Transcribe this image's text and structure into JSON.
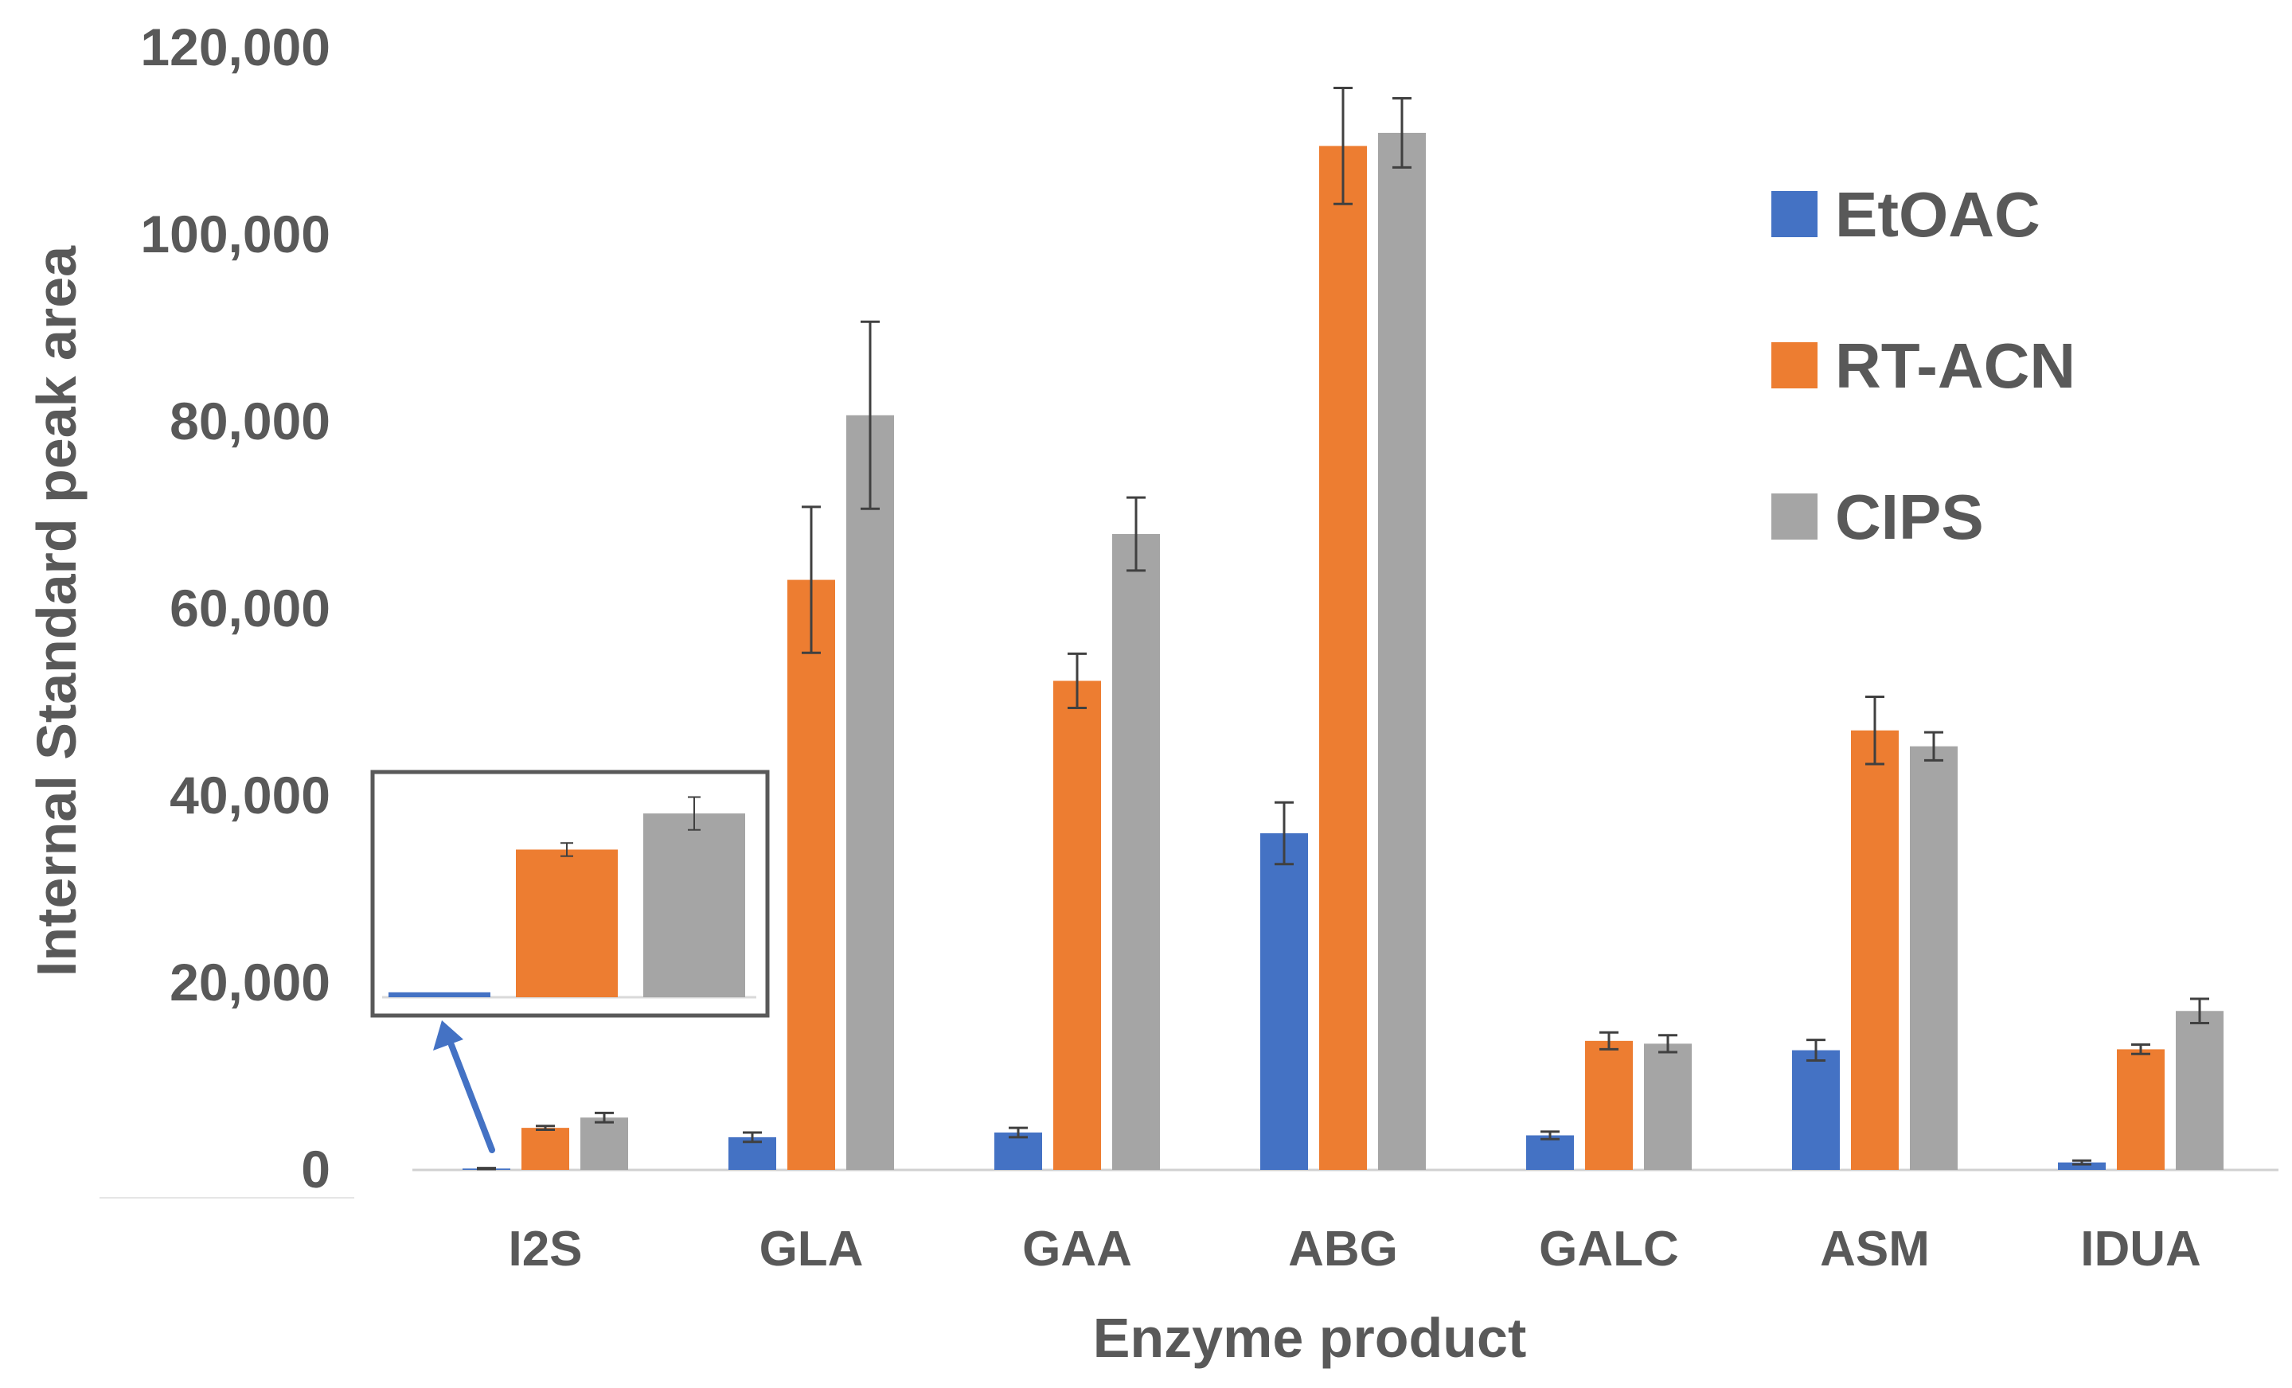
{
  "chart_data": {
    "type": "bar",
    "title": "",
    "xlabel": "Enzyme product",
    "ylabel": "Internal Standard peak area",
    "ylim": [
      0,
      120000
    ],
    "yticks": [
      0,
      20000,
      40000,
      60000,
      80000,
      100000,
      120000
    ],
    "ytick_labels": [
      "0",
      "20,000",
      "40,000",
      "60,000",
      "80,000",
      "100,000",
      "120,000"
    ],
    "categories": [
      "I2S",
      "GLA",
      "GAA",
      "ABG",
      "GALC",
      "ASM",
      "IDUA"
    ],
    "series": [
      {
        "name": "EtOAC",
        "color": "#4472C4",
        "values": [
          150,
          3500,
          4000,
          36000,
          3700,
          12800,
          800
        ],
        "errors": [
          50,
          500,
          500,
          3300,
          400,
          1100,
          200
        ]
      },
      {
        "name": "RT-ACN",
        "color": "#ED7D31",
        "values": [
          4500,
          63100,
          52300,
          109500,
          13800,
          47000,
          12900
        ],
        "errors": [
          200,
          7800,
          2900,
          6200,
          900,
          3600,
          500
        ]
      },
      {
        "name": "CIPS",
        "color": "#A5A5A5",
        "values": [
          5600,
          80700,
          68000,
          110900,
          13500,
          45300,
          17000
        ],
        "errors": [
          500,
          10000,
          3900,
          3700,
          900,
          1500,
          1300
        ]
      }
    ],
    "legend_position": "right",
    "grid": false,
    "inset": {
      "description_category": "I2S",
      "ylim": [
        0,
        6500
      ]
    }
  }
}
